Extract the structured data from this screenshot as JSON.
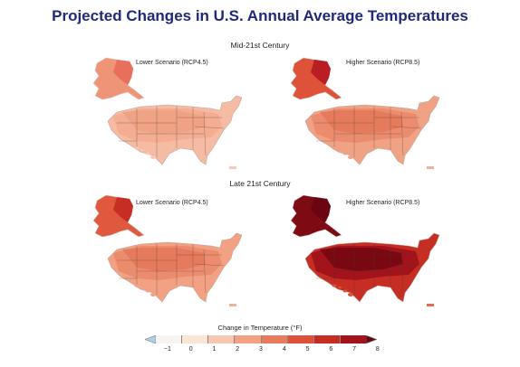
{
  "title": "Projected Changes in U.S. Annual Average Temperatures",
  "sections": [
    {
      "label": "Mid-21st Century",
      "panels": [
        {
          "label": "Lower Scenario (RCP4.5)",
          "scheme": "mid_low"
        },
        {
          "label": "Higher Scenario (RCP8.5)",
          "scheme": "mid_high"
        }
      ]
    },
    {
      "label": "Late 21st Century",
      "panels": [
        {
          "label": "Lower Scenario (RCP4.5)",
          "scheme": "late_low"
        },
        {
          "label": "Higher Scenario (RCP8.5)",
          "scheme": "late_high"
        }
      ]
    }
  ],
  "legend": {
    "title": "Change in Temperature (°F)",
    "ticks": [
      "−1",
      "0",
      "1",
      "2",
      "3",
      "4",
      "5",
      "6",
      "7",
      "8"
    ],
    "colors": [
      "#a8d0ea",
      "#f7f4f2",
      "#fbe4d8",
      "#f8c7b0",
      "#f2a283",
      "#ea7a5c",
      "#dd5238",
      "#c62e24",
      "#a3131b",
      "#6b0610"
    ]
  },
  "schemes": {
    "mid_low": {
      "alaska": [
        "#e8705a",
        "#f09478"
      ],
      "conus": [
        "#f6bba3",
        "#f4ad93",
        "#f0a285"
      ],
      "hawaii": "#f7c9b6",
      "pr": "#f7c9b6"
    },
    "mid_high": {
      "alaska": [
        "#b81e24",
        "#dd5238"
      ],
      "conus": [
        "#f0a285",
        "#ec8c6e",
        "#e67a5c"
      ],
      "hawaii": "#f2a283",
      "pr": "#f4b09a"
    },
    "late_low": {
      "alaska": [
        "#c62e24",
        "#e0583e"
      ],
      "conus": [
        "#f2a283",
        "#ec8c6e",
        "#e67a5c"
      ],
      "hawaii": "#f2a283",
      "pr": "#f4b09a"
    },
    "late_high": {
      "alaska": [
        "#6b0610",
        "#7e0a14"
      ],
      "conus": [
        "#c62e24",
        "#a3131b",
        "#7a0812"
      ],
      "hawaii": "#dd5238",
      "pr": "#e06a4c"
    }
  }
}
